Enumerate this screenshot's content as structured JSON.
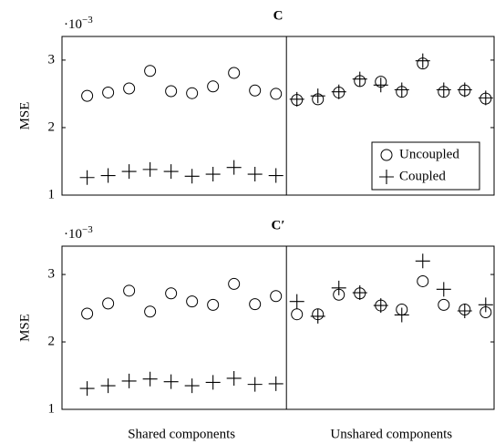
{
  "chart_data": [
    {
      "type": "scatter",
      "title": "C",
      "ylabel": "MSE",
      "scale_label": {
        "base": "·10",
        "exponent": "−3"
      },
      "x": [
        1,
        2,
        3,
        4,
        5,
        6,
        7,
        8,
        9,
        10,
        11,
        12,
        13,
        14,
        15,
        16,
        17,
        18,
        19,
        20
      ],
      "xlim": [
        -0.2,
        20.4
      ],
      "ylim": [
        1,
        3.35
      ],
      "yticks": [
        1,
        2,
        3
      ],
      "legend": "lower right",
      "series": [
        {
          "name": "Uncoupled",
          "color": "#000000",
          "marker": "circle",
          "values": [
            2.47,
            2.52,
            2.58,
            2.84,
            2.54,
            2.51,
            2.61,
            2.81,
            2.55,
            2.5,
            2.41,
            2.42,
            2.52,
            2.69,
            2.68,
            2.53,
            2.95,
            2.53,
            2.55,
            2.43
          ]
        },
        {
          "name": "Coupled",
          "color": "#000000",
          "marker": "plus",
          "values": [
            1.26,
            1.29,
            1.35,
            1.38,
            1.35,
            1.28,
            1.31,
            1.41,
            1.31,
            1.29,
            2.42,
            2.47,
            2.53,
            2.72,
            2.63,
            2.56,
            2.99,
            2.56,
            2.56,
            2.44
          ]
        }
      ]
    },
    {
      "type": "scatter",
      "title": "C′",
      "ylabel": "MSE",
      "scale_label": {
        "base": "·10",
        "exponent": "−3"
      },
      "x": [
        1,
        2,
        3,
        4,
        5,
        6,
        7,
        8,
        9,
        10,
        11,
        12,
        13,
        14,
        15,
        16,
        17,
        18,
        19,
        20
      ],
      "xlim": [
        -0.2,
        20.4
      ],
      "ylim": [
        1,
        3.42
      ],
      "yticks": [
        1,
        2,
        3
      ],
      "group_labels": [
        "Shared components",
        "Unshared components"
      ],
      "series": [
        {
          "color": "#000000",
          "marker": "circle",
          "values": [
            2.42,
            2.57,
            2.76,
            2.45,
            2.72,
            2.6,
            2.55,
            2.86,
            2.56,
            2.68,
            2.41,
            2.41,
            2.7,
            2.72,
            2.54,
            2.48,
            2.9,
            2.55,
            2.48,
            2.44
          ]
        },
        {
          "color": "#000000",
          "marker": "plus",
          "values": [
            1.31,
            1.35,
            1.42,
            1.45,
            1.41,
            1.35,
            1.4,
            1.46,
            1.37,
            1.38,
            2.6,
            2.38,
            2.8,
            2.73,
            2.54,
            2.4,
            3.2,
            2.78,
            2.46,
            2.55
          ]
        }
      ]
    }
  ]
}
